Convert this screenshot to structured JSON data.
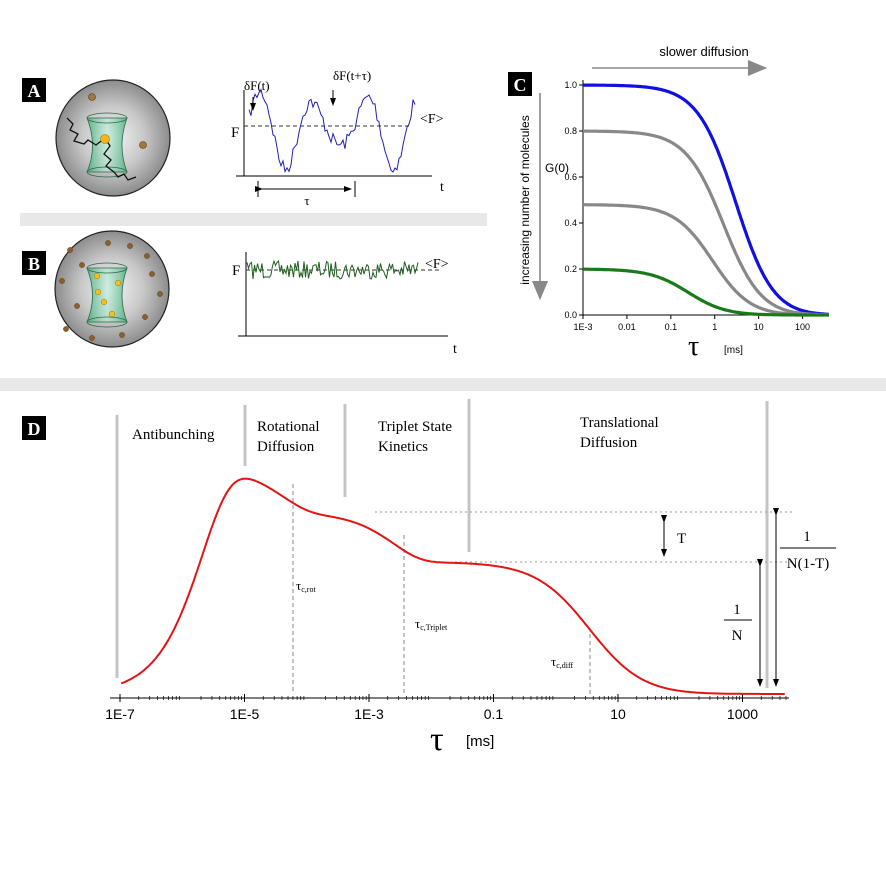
{
  "panels": {
    "A": {
      "label": "A",
      "f_label": "F",
      "t_label": "t",
      "df_t": "δF(t)",
      "df_ttau": "δF(t+τ)",
      "mean_f": "<F>",
      "tau": "τ"
    },
    "B": {
      "label": "B",
      "f_label": "F",
      "t_label": "t",
      "mean_f": "<F>"
    },
    "C": {
      "label": "C",
      "top_arrow_label": "slower diffusion",
      "side_arrow_label": "increasing number of molecules",
      "g0_label": "G(0)",
      "x_unit": "[ms]",
      "x_symbol": "τ"
    },
    "D": {
      "label": "D",
      "regions": [
        "Antibunching",
        "Rotational Diffusion",
        "Triplet State Kinetics",
        "Translational Diffusion"
      ],
      "tau_rot": "τ",
      "tau_rot_sub": "c,rot",
      "tau_triplet": "τ",
      "tau_triplet_sub": "c,Triplet",
      "tau_diff": "τ",
      "tau_diff_sub": "c,diff",
      "t_label": "T",
      "one": "1",
      "n_label": "N",
      "n1t_label": "N(1-T)",
      "x_unit": "[ms]",
      "x_symbol": "τ"
    }
  },
  "chart_data": [
    {
      "type": "line",
      "panel": "C",
      "xscale": "log",
      "xlim": [
        0.001,
        400
      ],
      "ylim": [
        0,
        1.0
      ],
      "x_ticks": [
        "1E-3",
        "0.01",
        "0.1",
        "1",
        "10",
        "100"
      ],
      "y_ticks": [
        "0.0",
        "0.2",
        "0.4",
        "0.6",
        "0.8",
        "1.0"
      ],
      "ylabel": "G(0)",
      "xlabel": "[ms]",
      "series": [
        {
          "g0": 1.0,
          "tau_d": 3.0,
          "color": "#1010e0"
        },
        {
          "g0": 0.8,
          "tau_d": 1.6,
          "color": "#888888"
        },
        {
          "g0": 0.48,
          "tau_d": 0.9,
          "color": "#888888"
        },
        {
          "g0": 0.2,
          "tau_d": 0.25,
          "color": "#1a7a1a"
        }
      ]
    },
    {
      "type": "line",
      "panel": "D",
      "xscale": "log",
      "xlim": [
        1e-07,
        5000
      ],
      "x_ticks": [
        "1E-7",
        "1E-5",
        "1E-3",
        "0.1",
        "10",
        "1000"
      ],
      "xlabel": "[ms]",
      "curve_color": "#e41414"
    }
  ]
}
